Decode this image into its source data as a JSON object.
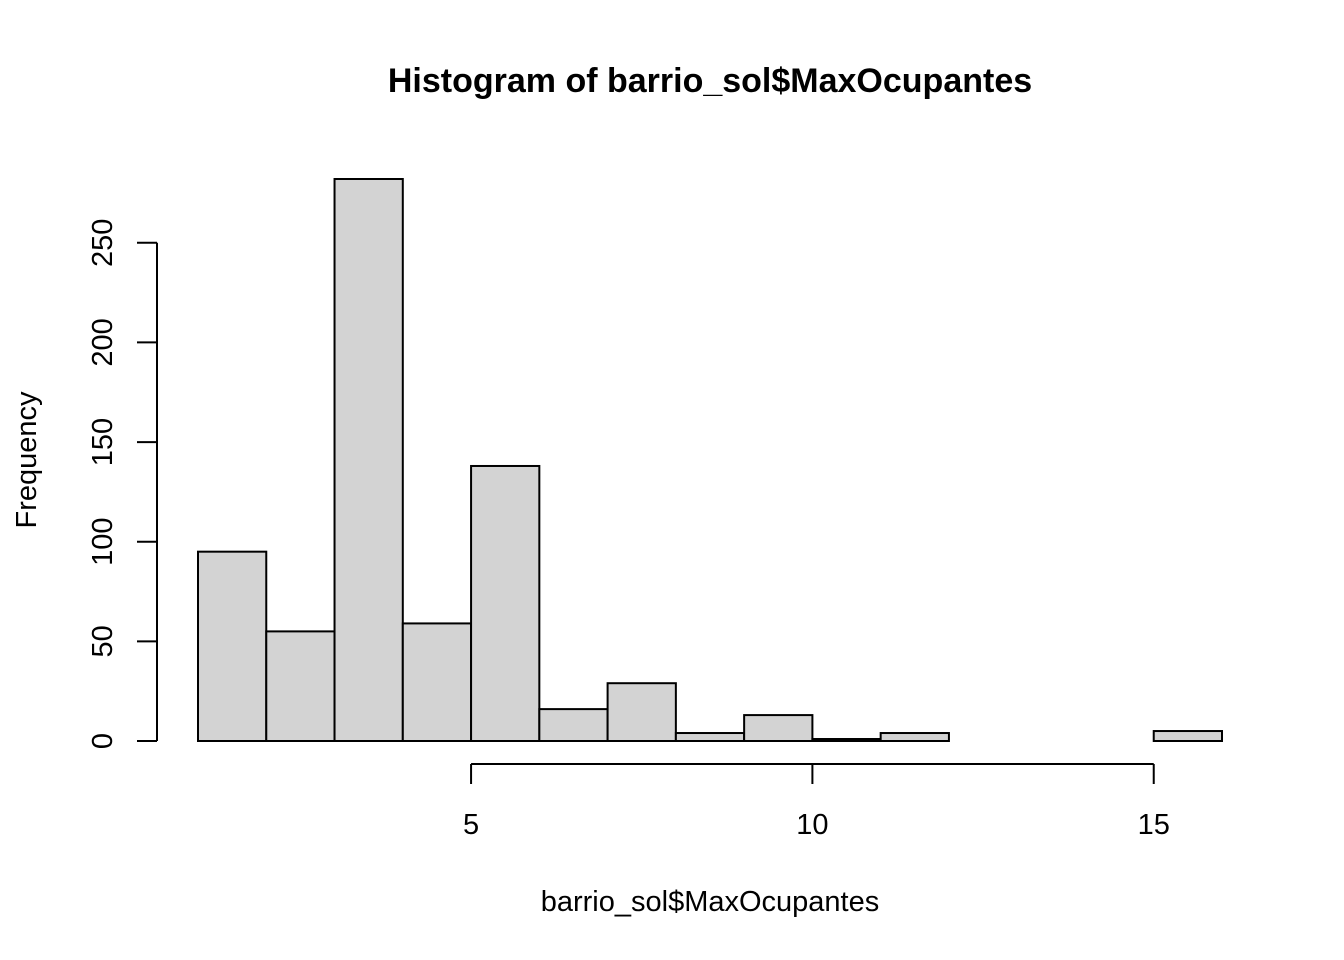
{
  "chart_data": {
    "type": "bar",
    "title": "Histogram of barrio_sol$MaxOcupantes",
    "xlabel": "barrio_sol$MaxOcupantes",
    "ylabel": "Frequency",
    "bin_edges": [
      1,
      2,
      3,
      4,
      5,
      6,
      7,
      8,
      9,
      10,
      11,
      12,
      13,
      14,
      15,
      16
    ],
    "values": [
      95,
      55,
      282,
      59,
      138,
      16,
      29,
      4,
      13,
      1,
      4,
      0,
      0,
      0,
      5
    ],
    "xlim": [
      1,
      16
    ],
    "ylim": [
      0,
      282
    ],
    "x_ticks": [
      5,
      10,
      15
    ],
    "y_ticks": [
      0,
      50,
      100,
      150,
      200,
      250
    ],
    "grid": false,
    "legend": "none",
    "bar_color": "#D3D3D3",
    "edge_color": "#000000"
  }
}
